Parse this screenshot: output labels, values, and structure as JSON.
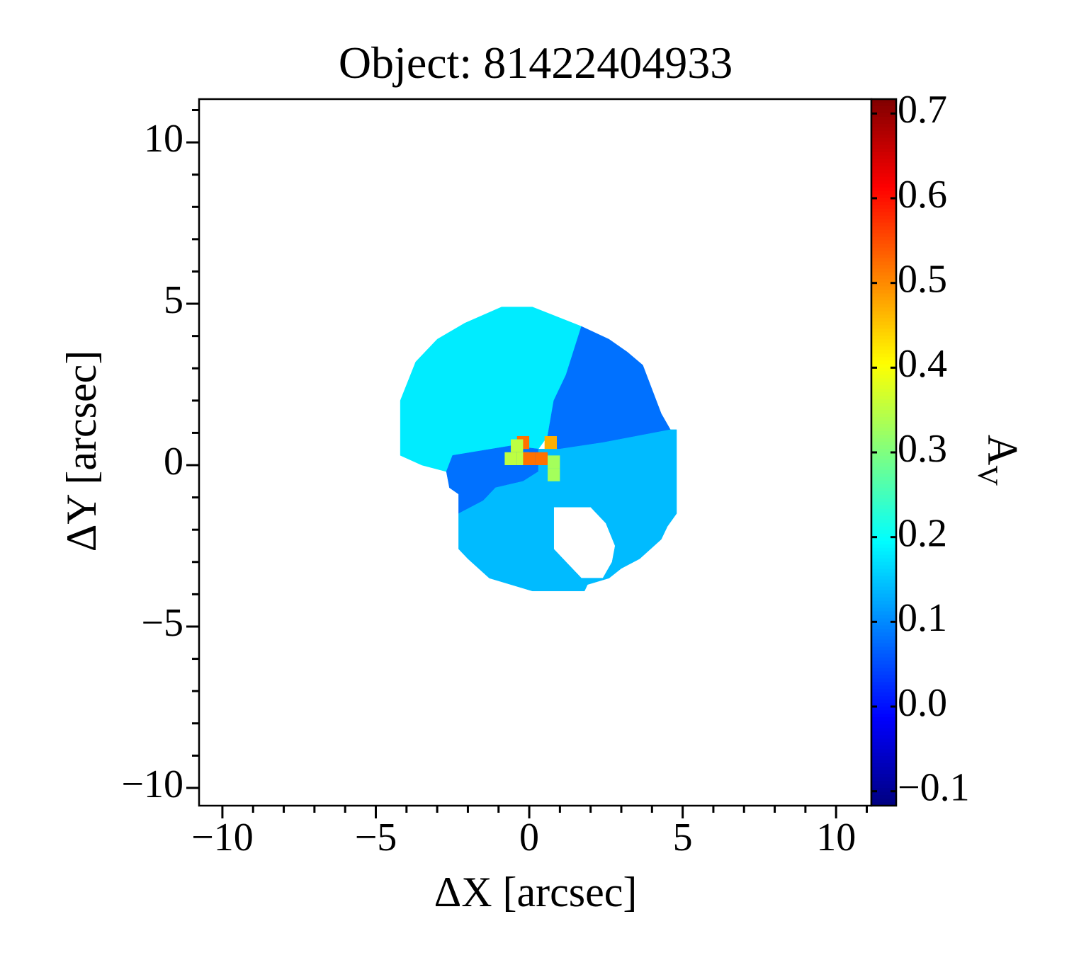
{
  "chart_data": {
    "type": "image",
    "title": "Object: 81422404933",
    "xlabel": "ΔX [arcsec]",
    "ylabel": "ΔY [arcsec]",
    "colorbar_label": "A",
    "colorbar_label_sub": "V",
    "colormap": "jet",
    "xlim": [
      -10.76,
      11.15
    ],
    "ylim": [
      -10.55,
      11.34
    ],
    "xticks": [
      {
        "value": -10,
        "label": "−10"
      },
      {
        "value": -5,
        "label": "−5"
      },
      0,
      5,
      10
    ],
    "yticks": [
      {
        "value": -10,
        "label": "−10"
      },
      {
        "value": -5,
        "label": "−5"
      },
      0,
      5,
      10
    ],
    "xminorticks": [
      -9,
      -8,
      -7,
      -6,
      -4,
      -3,
      -2,
      -1,
      1,
      2,
      3,
      4,
      6,
      7,
      8,
      9,
      11
    ],
    "yminorticks": [
      -9,
      -8,
      -7,
      -6,
      -4,
      -3,
      -2,
      -1,
      1,
      2,
      3,
      4,
      6,
      7,
      8,
      9,
      11
    ],
    "clim": [
      -0.117,
      0.717
    ],
    "cticks": [
      {
        "value": -0.1,
        "label": "−0.1"
      },
      {
        "value": 0,
        "label": "0.0"
      },
      0.1,
      0.2,
      0.3,
      0.4,
      0.5,
      0.6,
      0.7
    ],
    "regions": [
      {
        "value": 0.18,
        "rings": [
          [
            [
              -4.2,
              0.3
            ],
            [
              -4.2,
              2.0
            ],
            [
              -3.7,
              3.2
            ],
            [
              -3.0,
              3.9
            ],
            [
              -2.1,
              4.4
            ],
            [
              -0.9,
              4.9
            ],
            [
              0.1,
              4.9
            ],
            [
              1.7,
              4.3
            ],
            [
              1.2,
              2.8
            ],
            [
              0.8,
              2.0
            ],
            [
              0.6,
              0.9
            ],
            [
              0.3,
              0.5
            ],
            [
              -0.6,
              0.6
            ],
            [
              -2.5,
              0.3
            ],
            [
              -2.7,
              -0.2
            ],
            [
              -3.5,
              0.0
            ]
          ]
        ]
      },
      {
        "value": 0.08,
        "rings": [
          [
            [
              1.7,
              4.3
            ],
            [
              2.6,
              3.9
            ],
            [
              3.2,
              3.5
            ],
            [
              3.7,
              3.1
            ],
            [
              4.3,
              1.6
            ],
            [
              4.6,
              1.1
            ],
            [
              3.5,
              0.8
            ],
            [
              2.4,
              0.7
            ],
            [
              1.0,
              0.5
            ],
            [
              0.6,
              0.5
            ],
            [
              0.6,
              0.9
            ],
            [
              0.8,
              2.0
            ],
            [
              1.2,
              2.8
            ]
          ]
        ]
      },
      {
        "value": 0.08,
        "rings": [
          [
            [
              -2.5,
              0.3
            ],
            [
              -0.6,
              0.6
            ],
            [
              0.3,
              0.5
            ],
            [
              0.3,
              -0.2
            ],
            [
              -0.2,
              -0.5
            ],
            [
              -1.1,
              -0.7
            ],
            [
              -1.5,
              -1.1
            ],
            [
              -2.3,
              -1.5
            ],
            [
              -2.3,
              -0.9
            ],
            [
              -2.6,
              -0.7
            ],
            [
              -2.7,
              -0.2
            ]
          ]
        ]
      },
      {
        "value": 0.14,
        "rings": [
          [
            [
              -2.3,
              -1.5
            ],
            [
              -1.5,
              -1.1
            ],
            [
              -1.1,
              -0.7
            ],
            [
              -0.2,
              -0.5
            ],
            [
              0.3,
              -0.2
            ],
            [
              0.3,
              0.5
            ],
            [
              1.0,
              0.5
            ],
            [
              2.4,
              0.7
            ],
            [
              4.6,
              1.1
            ],
            [
              4.8,
              1.1
            ],
            [
              4.8,
              -1.5
            ],
            [
              4.5,
              -1.9
            ],
            [
              4.3,
              -2.3
            ],
            [
              3.6,
              -2.9
            ],
            [
              3.0,
              -3.2
            ],
            [
              2.6,
              -3.5
            ],
            [
              1.9,
              -3.7
            ],
            [
              1.8,
              -3.9
            ],
            [
              0.1,
              -3.9
            ],
            [
              -0.6,
              -3.7
            ],
            [
              -1.3,
              -3.5
            ],
            [
              -2.0,
              -2.9
            ],
            [
              -2.3,
              -2.6
            ]
          ],
          [
            [
              0.8,
              -1.3
            ],
            [
              2.0,
              -1.3
            ],
            [
              2.5,
              -1.8
            ],
            [
              2.8,
              -2.5
            ],
            [
              2.7,
              -3.0
            ],
            [
              2.4,
              -3.5
            ],
            [
              1.7,
              -3.5
            ],
            [
              1.2,
              -3.0
            ],
            [
              0.8,
              -2.6
            ]
          ]
        ]
      }
    ],
    "pixels": {
      "size": 0.4,
      "x": [
        -0.2,
        0.7,
        -0.4,
        -0.6,
        -0.2,
        0.0,
        0.4,
        0.8,
        0.8
      ],
      "y": [
        0.7,
        0.7,
        0.6,
        0.2,
        0.2,
        0.2,
        0.2,
        0.1,
        -0.3
      ],
      "values": [
        0.52,
        0.47,
        0.35,
        0.35,
        0.35,
        0.52,
        0.52,
        0.33,
        0.33
      ]
    }
  }
}
